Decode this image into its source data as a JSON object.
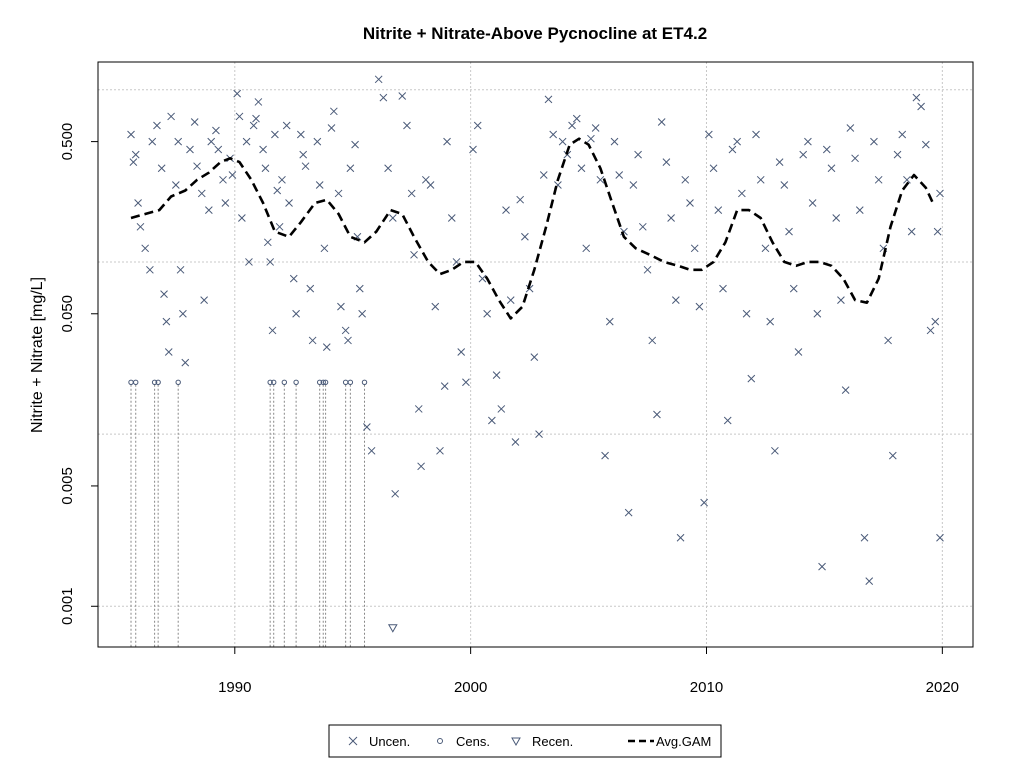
{
  "chart_data": {
    "type": "scatter",
    "title": "Nitrite + Nitrate-Above Pycnocline at ET4.2",
    "xlabel": "",
    "ylabel": "Nitrite + Nitrate [mg/L]",
    "y_scale": "log",
    "xlim": [
      1984.2,
      2021.3
    ],
    "ylim": [
      0.00058,
      1.45
    ],
    "x_ticks": [
      {
        "value": 1990,
        "label": "1990"
      },
      {
        "value": 2000,
        "label": "2000"
      },
      {
        "value": 2010,
        "label": "2010"
      },
      {
        "value": 2020,
        "label": "2020"
      }
    ],
    "y_ticks": [
      {
        "value": 0.001,
        "label": "0.001"
      },
      {
        "value": 0.005,
        "label": "0.005"
      },
      {
        "value": 0.05,
        "label": "0.050"
      },
      {
        "value": 0.5,
        "label": "0.500"
      }
    ],
    "grid": true,
    "grid_lines_y": [
      0.001,
      0.01,
      0.1,
      1.0
    ],
    "legend_position": "bottom",
    "legend": [
      {
        "label": "Uncen.",
        "symbol": "x"
      },
      {
        "label": "Cens.",
        "symbol": "circle"
      },
      {
        "label": "Recen.",
        "symbol": "triangle-down"
      },
      {
        "label": "Avg.GAM",
        "symbol": "dashed-line"
      }
    ],
    "colors": {
      "points": "#4a5a78",
      "gam": "#000000",
      "grid": "#c8c8c8",
      "censored": "#888888"
    },
    "series": [
      {
        "name": "Uncen.",
        "marker": "x",
        "points": [
          [
            1985.6,
            0.55
          ],
          [
            1985.7,
            0.38
          ],
          [
            1985.8,
            0.42
          ],
          [
            1985.9,
            0.22
          ],
          [
            1986.0,
            0.16
          ],
          [
            1986.2,
            0.12
          ],
          [
            1986.4,
            0.09
          ],
          [
            1986.5,
            0.5
          ],
          [
            1986.7,
            0.62
          ],
          [
            1986.9,
            0.35
          ],
          [
            1987.0,
            0.065
          ],
          [
            1987.1,
            0.045
          ],
          [
            1987.2,
            0.03
          ],
          [
            1987.3,
            0.7
          ],
          [
            1987.5,
            0.28
          ],
          [
            1987.6,
            0.5
          ],
          [
            1987.7,
            0.09
          ],
          [
            1987.8,
            0.05
          ],
          [
            1987.9,
            0.026
          ],
          [
            1988.1,
            0.45
          ],
          [
            1988.3,
            0.65
          ],
          [
            1988.4,
            0.36
          ],
          [
            1988.6,
            0.25
          ],
          [
            1988.7,
            0.06
          ],
          [
            1988.9,
            0.2
          ],
          [
            1989.0,
            0.5
          ],
          [
            1989.2,
            0.58
          ],
          [
            1989.3,
            0.45
          ],
          [
            1989.5,
            0.3
          ],
          [
            1989.6,
            0.22
          ],
          [
            1989.8,
            0.4
          ],
          [
            1989.9,
            0.32
          ],
          [
            1990.1,
            0.95
          ],
          [
            1990.2,
            0.7
          ],
          [
            1990.3,
            0.18
          ],
          [
            1990.5,
            0.5
          ],
          [
            1990.6,
            0.1
          ],
          [
            1990.8,
            0.62
          ],
          [
            1990.9,
            0.68
          ],
          [
            1991.0,
            0.85
          ],
          [
            1991.2,
            0.45
          ],
          [
            1991.3,
            0.35
          ],
          [
            1991.4,
            0.13
          ],
          [
            1991.5,
            0.1
          ],
          [
            1991.6,
            0.04
          ],
          [
            1991.7,
            0.55
          ],
          [
            1991.8,
            0.26
          ],
          [
            1991.9,
            0.16
          ],
          [
            1992.0,
            0.3
          ],
          [
            1992.2,
            0.62
          ],
          [
            1992.3,
            0.22
          ],
          [
            1992.5,
            0.08
          ],
          [
            1992.6,
            0.05
          ],
          [
            1992.8,
            0.55
          ],
          [
            1992.9,
            0.42
          ],
          [
            1993.0,
            0.36
          ],
          [
            1993.2,
            0.07
          ],
          [
            1993.3,
            0.035
          ],
          [
            1993.5,
            0.5
          ],
          [
            1993.6,
            0.28
          ],
          [
            1993.8,
            0.12
          ],
          [
            1993.9,
            0.032
          ],
          [
            1994.1,
            0.6
          ],
          [
            1994.2,
            0.75
          ],
          [
            1994.4,
            0.25
          ],
          [
            1994.5,
            0.055
          ],
          [
            1994.7,
            0.04
          ],
          [
            1994.8,
            0.035
          ],
          [
            1994.9,
            0.35
          ],
          [
            1995.1,
            0.48
          ],
          [
            1995.2,
            0.14
          ],
          [
            1995.3,
            0.07
          ],
          [
            1995.4,
            0.05
          ],
          [
            1995.6,
            0.011
          ],
          [
            1995.8,
            0.008
          ],
          [
            1996.1,
            1.15
          ],
          [
            1996.3,
            0.9
          ],
          [
            1996.5,
            0.35
          ],
          [
            1996.7,
            0.18
          ],
          [
            1996.8,
            0.0045
          ],
          [
            1997.1,
            0.92
          ],
          [
            1997.3,
            0.62
          ],
          [
            1997.5,
            0.25
          ],
          [
            1997.6,
            0.11
          ],
          [
            1997.8,
            0.014
          ],
          [
            1997.9,
            0.0065
          ],
          [
            1998.1,
            0.3
          ],
          [
            1998.3,
            0.28
          ],
          [
            1998.5,
            0.055
          ],
          [
            1998.7,
            0.008
          ],
          [
            1998.9,
            0.019
          ],
          [
            1999.0,
            0.5
          ],
          [
            1999.2,
            0.18
          ],
          [
            1999.4,
            0.1
          ],
          [
            1999.6,
            0.03
          ],
          [
            1999.8,
            0.02
          ],
          [
            2000.1,
            0.45
          ],
          [
            2000.3,
            0.62
          ],
          [
            2000.5,
            0.08
          ],
          [
            2000.7,
            0.05
          ],
          [
            2000.9,
            0.012
          ],
          [
            2001.1,
            0.022
          ],
          [
            2001.3,
            0.014
          ],
          [
            2001.5,
            0.2
          ],
          [
            2001.7,
            0.06
          ],
          [
            2001.9,
            0.009
          ],
          [
            2002.1,
            0.23
          ],
          [
            2002.3,
            0.14
          ],
          [
            2002.5,
            0.07
          ],
          [
            2002.7,
            0.028
          ],
          [
            2002.9,
            0.01
          ],
          [
            2003.1,
            0.32
          ],
          [
            2003.3,
            0.88
          ],
          [
            2003.5,
            0.55
          ],
          [
            2003.7,
            0.28
          ],
          [
            2003.9,
            0.5
          ],
          [
            2004.1,
            0.42
          ],
          [
            2004.3,
            0.62
          ],
          [
            2004.5,
            0.68
          ],
          [
            2004.7,
            0.35
          ],
          [
            2004.9,
            0.12
          ],
          [
            2005.1,
            0.52
          ],
          [
            2005.3,
            0.6
          ],
          [
            2005.5,
            0.3
          ],
          [
            2005.7,
            0.0075
          ],
          [
            2005.9,
            0.045
          ],
          [
            2006.1,
            0.5
          ],
          [
            2006.3,
            0.32
          ],
          [
            2006.5,
            0.15
          ],
          [
            2006.7,
            0.0035
          ],
          [
            2006.9,
            0.28
          ],
          [
            2007.1,
            0.42
          ],
          [
            2007.3,
            0.16
          ],
          [
            2007.5,
            0.09
          ],
          [
            2007.7,
            0.035
          ],
          [
            2007.9,
            0.013
          ],
          [
            2008.1,
            0.65
          ],
          [
            2008.3,
            0.38
          ],
          [
            2008.5,
            0.18
          ],
          [
            2008.7,
            0.06
          ],
          [
            2008.9,
            0.0025
          ],
          [
            2009.1,
            0.3
          ],
          [
            2009.3,
            0.22
          ],
          [
            2009.5,
            0.12
          ],
          [
            2009.7,
            0.055
          ],
          [
            2009.9,
            0.004
          ],
          [
            2010.1,
            0.55
          ],
          [
            2010.3,
            0.35
          ],
          [
            2010.5,
            0.2
          ],
          [
            2010.7,
            0.07
          ],
          [
            2010.9,
            0.012
          ],
          [
            2011.1,
            0.45
          ],
          [
            2011.3,
            0.5
          ],
          [
            2011.5,
            0.25
          ],
          [
            2011.7,
            0.05
          ],
          [
            2011.9,
            0.021
          ],
          [
            2012.1,
            0.55
          ],
          [
            2012.3,
            0.3
          ],
          [
            2012.5,
            0.12
          ],
          [
            2012.7,
            0.045
          ],
          [
            2012.9,
            0.008
          ],
          [
            2013.1,
            0.38
          ],
          [
            2013.3,
            0.28
          ],
          [
            2013.5,
            0.15
          ],
          [
            2013.7,
            0.07
          ],
          [
            2013.9,
            0.03
          ],
          [
            2014.1,
            0.42
          ],
          [
            2014.3,
            0.5
          ],
          [
            2014.5,
            0.22
          ],
          [
            2014.7,
            0.05
          ],
          [
            2014.9,
            0.0017
          ],
          [
            2015.1,
            0.45
          ],
          [
            2015.3,
            0.35
          ],
          [
            2015.5,
            0.18
          ],
          [
            2015.7,
            0.06
          ],
          [
            2015.9,
            0.018
          ],
          [
            2016.1,
            0.6
          ],
          [
            2016.3,
            0.4
          ],
          [
            2016.5,
            0.2
          ],
          [
            2016.7,
            0.0025
          ],
          [
            2016.9,
            0.0014
          ],
          [
            2017.1,
            0.5
          ],
          [
            2017.3,
            0.3
          ],
          [
            2017.5,
            0.12
          ],
          [
            2017.7,
            0.035
          ],
          [
            2017.9,
            0.0075
          ],
          [
            2018.1,
            0.42
          ],
          [
            2018.3,
            0.55
          ],
          [
            2018.5,
            0.3
          ],
          [
            2018.7,
            0.15
          ],
          [
            2018.9,
            0.9
          ],
          [
            2019.1,
            0.8
          ],
          [
            2019.3,
            0.48
          ],
          [
            2019.5,
            0.04
          ],
          [
            2019.7,
            0.045
          ],
          [
            2019.9,
            0.0025
          ],
          [
            2019.8,
            0.15
          ],
          [
            2019.9,
            0.25
          ]
        ]
      },
      {
        "name": "Cens.",
        "marker": "circle",
        "limit": 0.02,
        "points": [
          [
            1985.6,
            0.02
          ],
          [
            1985.8,
            0.02
          ],
          [
            1986.6,
            0.02
          ],
          [
            1986.75,
            0.02
          ],
          [
            1987.6,
            0.02
          ],
          [
            1991.5,
            0.02
          ],
          [
            1991.65,
            0.02
          ],
          [
            1992.1,
            0.02
          ],
          [
            1992.6,
            0.02
          ],
          [
            1993.6,
            0.02
          ],
          [
            1993.75,
            0.02
          ],
          [
            1993.85,
            0.02
          ],
          [
            1994.7,
            0.02
          ],
          [
            1994.9,
            0.02
          ],
          [
            1995.5,
            0.02
          ]
        ]
      },
      {
        "name": "Recen.",
        "marker": "triangle-down",
        "points": [
          [
            1996.7,
            0.00075
          ]
        ]
      },
      {
        "name": "Avg.GAM",
        "marker": "dashed-line",
        "points": [
          [
            1985.6,
            0.18
          ],
          [
            1986.2,
            0.19
          ],
          [
            1986.8,
            0.2
          ],
          [
            1987.3,
            0.24
          ],
          [
            1987.9,
            0.26
          ],
          [
            1988.4,
            0.3
          ],
          [
            1988.9,
            0.33
          ],
          [
            1989.4,
            0.38
          ],
          [
            1989.8,
            0.4
          ],
          [
            1990.2,
            0.38
          ],
          [
            1990.7,
            0.3
          ],
          [
            1991.2,
            0.22
          ],
          [
            1991.7,
            0.15
          ],
          [
            1992.3,
            0.14
          ],
          [
            1992.8,
            0.17
          ],
          [
            1993.4,
            0.22
          ],
          [
            1993.9,
            0.23
          ],
          [
            1994.4,
            0.19
          ],
          [
            1994.9,
            0.14
          ],
          [
            1995.5,
            0.13
          ],
          [
            1996.0,
            0.15
          ],
          [
            1996.6,
            0.2
          ],
          [
            1997.1,
            0.19
          ],
          [
            1997.6,
            0.14
          ],
          [
            1998.2,
            0.1
          ],
          [
            1998.7,
            0.085
          ],
          [
            1999.2,
            0.09
          ],
          [
            1999.7,
            0.1
          ],
          [
            2000.2,
            0.1
          ],
          [
            2000.7,
            0.08
          ],
          [
            2001.2,
            0.06
          ],
          [
            2001.7,
            0.047
          ],
          [
            2002.2,
            0.055
          ],
          [
            2002.7,
            0.09
          ],
          [
            2003.2,
            0.16
          ],
          [
            2003.7,
            0.3
          ],
          [
            2004.2,
            0.48
          ],
          [
            2004.6,
            0.52
          ],
          [
            2005.0,
            0.48
          ],
          [
            2005.5,
            0.35
          ],
          [
            2006.0,
            0.22
          ],
          [
            2006.5,
            0.14
          ],
          [
            2007.0,
            0.12
          ],
          [
            2007.6,
            0.11
          ],
          [
            2008.2,
            0.1
          ],
          [
            2008.8,
            0.095
          ],
          [
            2009.3,
            0.09
          ],
          [
            2009.8,
            0.09
          ],
          [
            2010.3,
            0.1
          ],
          [
            2010.8,
            0.13
          ],
          [
            2011.3,
            0.2
          ],
          [
            2011.8,
            0.2
          ],
          [
            2012.3,
            0.18
          ],
          [
            2012.8,
            0.13
          ],
          [
            2013.3,
            0.1
          ],
          [
            2013.8,
            0.095
          ],
          [
            2014.3,
            0.1
          ],
          [
            2014.8,
            0.1
          ],
          [
            2015.3,
            0.095
          ],
          [
            2015.8,
            0.08
          ],
          [
            2016.3,
            0.06
          ],
          [
            2016.8,
            0.058
          ],
          [
            2017.3,
            0.08
          ],
          [
            2017.8,
            0.16
          ],
          [
            2018.3,
            0.26
          ],
          [
            2018.8,
            0.32
          ],
          [
            2019.3,
            0.27
          ],
          [
            2019.6,
            0.22
          ]
        ]
      }
    ]
  }
}
